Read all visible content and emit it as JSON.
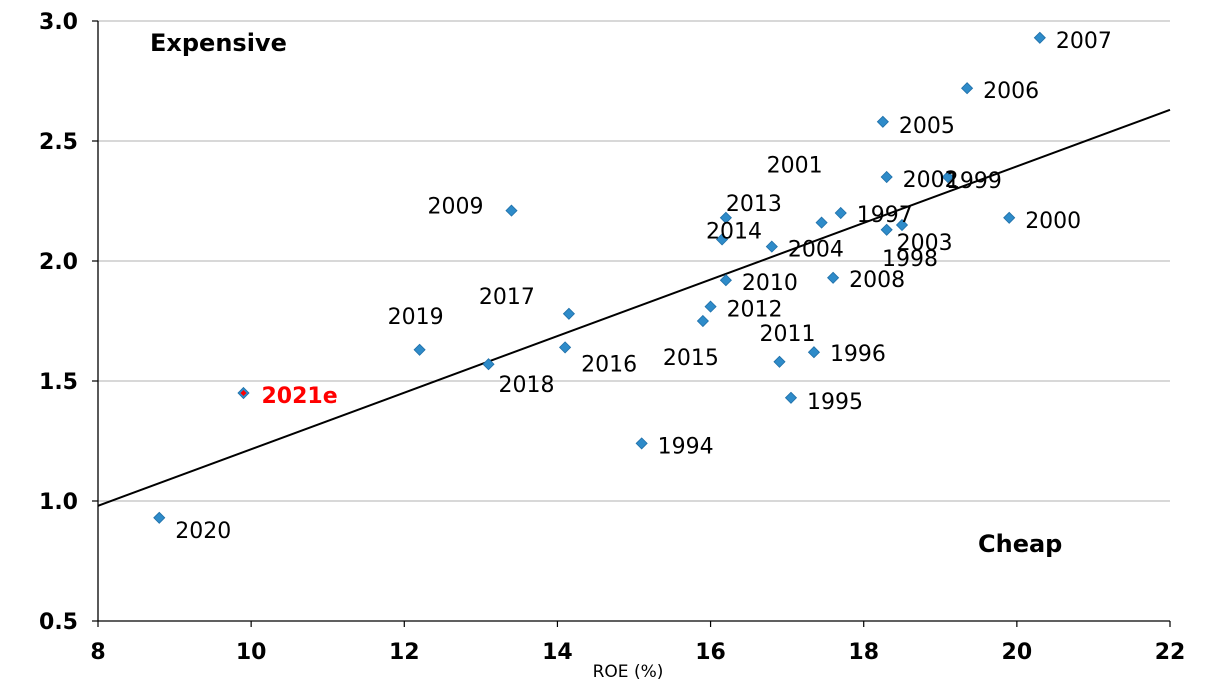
{
  "chart_data": {
    "type": "scatter",
    "title": "",
    "xlabel": "ROE (%)",
    "ylabel": "",
    "xlim": [
      8,
      22
    ],
    "ylim": [
      0.5,
      3.0
    ],
    "x_ticks": [
      "8",
      "10",
      "12",
      "14",
      "16",
      "18",
      "20",
      "22"
    ],
    "y_ticks": [
      "0.5",
      "1.0",
      "1.5",
      "2.0",
      "2.5",
      "3.0"
    ],
    "grid": "horizontal",
    "annotations": {
      "top_left": "Expensive",
      "bottom_right": "Cheap"
    },
    "trendline": {
      "x": [
        8,
        22
      ],
      "y": [
        0.98,
        2.63
      ]
    },
    "marker_color": "#2e8bc9",
    "highlight_color": "#ff0000",
    "points": [
      {
        "label": "1994",
        "x": 15.1,
        "y": 1.24
      },
      {
        "label": "1995",
        "x": 17.05,
        "y": 1.43
      },
      {
        "label": "1996",
        "x": 17.35,
        "y": 1.62
      },
      {
        "label": "1997",
        "x": 17.7,
        "y": 2.2
      },
      {
        "label": "1998",
        "x": 18.5,
        "y": 2.15
      },
      {
        "label": "1999",
        "x": 19.1,
        "y": 2.35
      },
      {
        "label": "2000",
        "x": 19.9,
        "y": 2.18
      },
      {
        "label": "2001",
        "x": 17.45,
        "y": 2.16
      },
      {
        "label": "2002",
        "x": 18.3,
        "y": 2.35
      },
      {
        "label": "2003",
        "x": 18.3,
        "y": 2.13
      },
      {
        "label": "2004",
        "x": 16.8,
        "y": 2.06
      },
      {
        "label": "2005",
        "x": 18.25,
        "y": 2.58
      },
      {
        "label": "2006",
        "x": 19.35,
        "y": 2.72
      },
      {
        "label": "2007",
        "x": 20.3,
        "y": 2.93
      },
      {
        "label": "2008",
        "x": 17.6,
        "y": 1.93
      },
      {
        "label": "2009",
        "x": 13.4,
        "y": 2.21
      },
      {
        "label": "2010",
        "x": 16.2,
        "y": 1.92
      },
      {
        "label": "2011",
        "x": 16.9,
        "y": 1.58
      },
      {
        "label": "2012",
        "x": 16.0,
        "y": 1.81
      },
      {
        "label": "2013",
        "x": 16.2,
        "y": 2.18
      },
      {
        "label": "2014",
        "x": 16.15,
        "y": 2.09
      },
      {
        "label": "2015",
        "x": 15.9,
        "y": 1.75
      },
      {
        "label": "2016",
        "x": 14.1,
        "y": 1.64
      },
      {
        "label": "2017",
        "x": 14.15,
        "y": 1.78
      },
      {
        "label": "2018",
        "x": 13.1,
        "y": 1.57
      },
      {
        "label": "2019",
        "x": 12.2,
        "y": 1.63
      },
      {
        "label": "2020",
        "x": 8.8,
        "y": 0.93
      },
      {
        "label": "2021e",
        "x": 9.9,
        "y": 1.45,
        "highlight": true
      }
    ]
  }
}
